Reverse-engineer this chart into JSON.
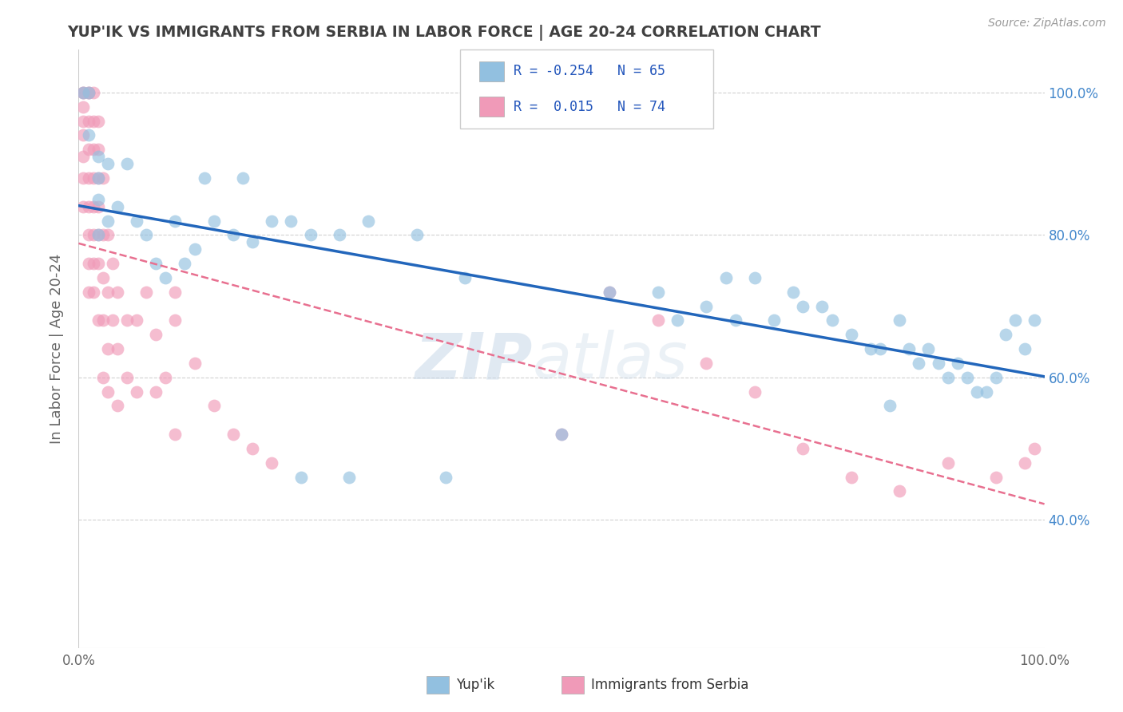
{
  "title": "YUP'IK VS IMMIGRANTS FROM SERBIA IN LABOR FORCE | AGE 20-24 CORRELATION CHART",
  "source_text": "Source: ZipAtlas.com",
  "ylabel": "In Labor Force | Age 20-24",
  "xlim": [
    0.0,
    1.0
  ],
  "ylim": [
    0.22,
    1.06
  ],
  "yticks_right": [
    0.4,
    0.6,
    0.8,
    1.0
  ],
  "ytick_right_labels": [
    "40.0%",
    "60.0%",
    "80.0%",
    "100.0%"
  ],
  "legend_entries": [
    {
      "label": "Yup'ik",
      "color": "#a8c8e8",
      "R": -0.254,
      "N": 65
    },
    {
      "label": "Immigrants from Serbia",
      "color": "#f4b8c8",
      "R": 0.015,
      "N": 74
    }
  ],
  "blue_scatter_x": [
    0.005,
    0.01,
    0.01,
    0.02,
    0.02,
    0.02,
    0.02,
    0.03,
    0.03,
    0.04,
    0.05,
    0.06,
    0.07,
    0.08,
    0.09,
    0.1,
    0.11,
    0.12,
    0.14,
    0.16,
    0.18,
    0.2,
    0.22,
    0.24,
    0.27,
    0.3,
    0.35,
    0.4,
    0.5,
    0.55,
    0.6,
    0.62,
    0.65,
    0.67,
    0.68,
    0.7,
    0.72,
    0.74,
    0.75,
    0.77,
    0.78,
    0.8,
    0.82,
    0.83,
    0.84,
    0.85,
    0.86,
    0.87,
    0.88,
    0.89,
    0.9,
    0.91,
    0.92,
    0.93,
    0.94,
    0.95,
    0.96,
    0.97,
    0.98,
    0.99,
    0.13,
    0.17,
    0.23,
    0.28,
    0.38
  ],
  "blue_scatter_y": [
    1.0,
    1.0,
    0.94,
    0.91,
    0.88,
    0.85,
    0.8,
    0.9,
    0.82,
    0.84,
    0.9,
    0.82,
    0.8,
    0.76,
    0.74,
    0.82,
    0.76,
    0.78,
    0.82,
    0.8,
    0.79,
    0.82,
    0.82,
    0.8,
    0.8,
    0.82,
    0.8,
    0.74,
    0.52,
    0.72,
    0.72,
    0.68,
    0.7,
    0.74,
    0.68,
    0.74,
    0.68,
    0.72,
    0.7,
    0.7,
    0.68,
    0.66,
    0.64,
    0.64,
    0.56,
    0.68,
    0.64,
    0.62,
    0.64,
    0.62,
    0.6,
    0.62,
    0.6,
    0.58,
    0.58,
    0.6,
    0.66,
    0.68,
    0.64,
    0.68,
    0.88,
    0.88,
    0.46,
    0.46,
    0.46
  ],
  "pink_scatter_x": [
    0.005,
    0.005,
    0.005,
    0.005,
    0.005,
    0.005,
    0.005,
    0.005,
    0.01,
    0.01,
    0.01,
    0.01,
    0.01,
    0.01,
    0.01,
    0.01,
    0.01,
    0.015,
    0.015,
    0.015,
    0.015,
    0.015,
    0.015,
    0.015,
    0.015,
    0.02,
    0.02,
    0.02,
    0.02,
    0.02,
    0.02,
    0.02,
    0.025,
    0.025,
    0.025,
    0.025,
    0.025,
    0.03,
    0.03,
    0.03,
    0.03,
    0.035,
    0.035,
    0.04,
    0.04,
    0.04,
    0.05,
    0.05,
    0.06,
    0.06,
    0.07,
    0.08,
    0.08,
    0.09,
    0.1,
    0.1,
    0.1,
    0.12,
    0.14,
    0.16,
    0.18,
    0.2,
    0.5,
    0.55,
    0.6,
    0.65,
    0.7,
    0.75,
    0.8,
    0.85,
    0.9,
    0.95,
    0.98,
    0.99
  ],
  "pink_scatter_y": [
    1.0,
    1.0,
    0.98,
    0.96,
    0.94,
    0.91,
    0.88,
    0.84,
    1.0,
    1.0,
    0.96,
    0.92,
    0.88,
    0.84,
    0.8,
    0.76,
    0.72,
    1.0,
    0.96,
    0.92,
    0.88,
    0.84,
    0.8,
    0.76,
    0.72,
    0.96,
    0.92,
    0.88,
    0.84,
    0.8,
    0.76,
    0.68,
    0.88,
    0.8,
    0.74,
    0.68,
    0.6,
    0.8,
    0.72,
    0.64,
    0.58,
    0.76,
    0.68,
    0.72,
    0.64,
    0.56,
    0.68,
    0.6,
    0.68,
    0.58,
    0.72,
    0.66,
    0.58,
    0.6,
    0.72,
    0.68,
    0.52,
    0.62,
    0.56,
    0.52,
    0.5,
    0.48,
    0.52,
    0.72,
    0.68,
    0.62,
    0.58,
    0.5,
    0.46,
    0.44,
    0.48,
    0.46,
    0.48,
    0.5
  ],
  "blue_color": "#92c0e0",
  "pink_color": "#f09ab8",
  "blue_line_color": "#2266bb",
  "pink_line_color": "#e87090",
  "watermark_zip": "ZIP",
  "watermark_atlas": "atlas",
  "bg_color": "#ffffff",
  "grid_color": "#cccccc",
  "title_color": "#404040",
  "axis_label_color": "#666666",
  "right_tick_color": "#4488cc"
}
